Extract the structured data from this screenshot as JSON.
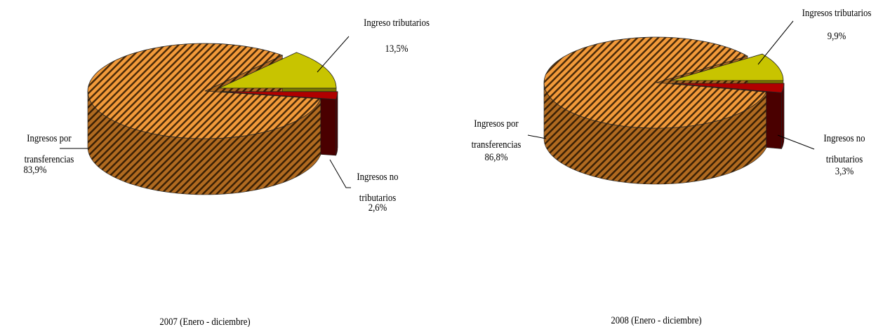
{
  "chart_data": [
    {
      "type": "pie",
      "title": "2007 (Enero - diciembre)",
      "categories": [
        "Ingreso tributarios",
        "Ingresos no tributarios",
        "Ingresos por transferencias"
      ],
      "values": [
        13.5,
        2.6,
        83.9
      ],
      "value_labels": [
        "13,5%",
        "2,6%",
        "83,9%"
      ],
      "colors": [
        "#c8c400",
        "#b00000",
        "#f29a3a"
      ]
    },
    {
      "type": "pie",
      "title": "2008 (Enero - diciembre)",
      "categories": [
        "Ingresos tributarios",
        "Ingresos no tributarios",
        "Ingresos por transferencias"
      ],
      "values": [
        9.9,
        3.3,
        86.8
      ],
      "value_labels": [
        "9,9%",
        "3,3%",
        "86,8%"
      ],
      "colors": [
        "#c8c400",
        "#b00000",
        "#f29a3a"
      ]
    }
  ]
}
